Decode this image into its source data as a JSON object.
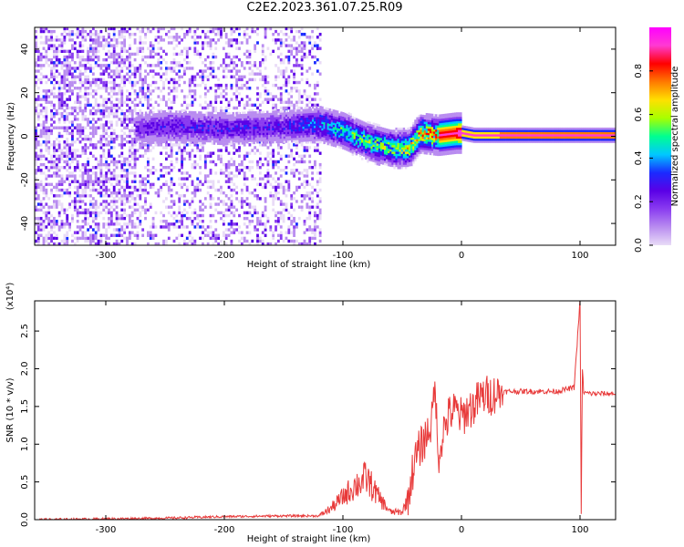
{
  "figure_title": "C2E2.2023.361.07.25.R09",
  "colors": {
    "snr_line": "#e83a3a",
    "spectrogram_palette": [
      "#ffffff",
      "#e9dcf7",
      "#b98cf0",
      "#8a3cf0",
      "#5a00e6",
      "#1a2bff",
      "#00c8ff",
      "#00ff90",
      "#a8ff00",
      "#ffe000",
      "#ff7a00",
      "#ff0000",
      "#ff3ad2",
      "#ff00ff"
    ]
  },
  "chart_data": [
    {
      "type": "heatmap",
      "xlabel": "Height of straight line (km)",
      "ylabel": "Frequency (Hz)",
      "xlim": [
        -360,
        130
      ],
      "ylim": [
        -50,
        50
      ],
      "xticks": [
        -300,
        -200,
        -100,
        0,
        100
      ],
      "yticks": [
        -40,
        -20,
        0,
        20,
        40
      ],
      "xtick_labels": [
        "-300",
        "-200",
        "-100",
        "0",
        "100"
      ],
      "ytick_labels": [
        "-40",
        "-20",
        "0",
        "20",
        "40"
      ],
      "colorbar": {
        "label": "Normalized spectral amplitude",
        "range": [
          0,
          1
        ],
        "ticks": [
          0.0,
          0.2,
          0.4,
          0.6,
          0.8
        ],
        "tick_labels": [
          "0.0",
          "0.2",
          "0.4",
          "0.6",
          "0.8"
        ]
      },
      "ridge": {
        "x": [
          -275,
          -250,
          -200,
          -150,
          -120,
          -100,
          -80,
          -60,
          -45,
          -35,
          -20,
          -5,
          0,
          10,
          20,
          40,
          100,
          130
        ],
        "frequency": [
          3,
          4,
          3,
          4,
          5,
          2,
          -3,
          -6,
          -6,
          1,
          0,
          1,
          1,
          0,
          0,
          0,
          0,
          0
        ],
        "amplitude": [
          0.25,
          0.3,
          0.3,
          0.32,
          0.45,
          0.55,
          0.6,
          0.65,
          0.7,
          0.8,
          0.88,
          0.9,
          0.92,
          0.93,
          0.93,
          0.95,
          0.95,
          0.95
        ]
      },
      "noise_extent_x": [
        -360,
        -120
      ]
    },
    {
      "type": "line",
      "xlabel": "Height of straight line (km)",
      "ylabel": "SNR (10 * v/v)",
      "y_multiplier_label": "(x10⁴)",
      "xlim": [
        -360,
        130
      ],
      "ylim": [
        0,
        2.9
      ],
      "xticks": [
        -300,
        -200,
        -100,
        0,
        100
      ],
      "yticks": [
        0.0,
        0.5,
        1.0,
        1.5,
        2.0,
        2.5
      ],
      "xtick_labels": [
        "-300",
        "-200",
        "-100",
        "0",
        "100"
      ],
      "ytick_labels": [
        "0.0",
        "0.5",
        "1.0",
        "1.5",
        "2.0",
        "2.5"
      ],
      "series": [
        {
          "x": [
            -360,
            -300,
            -250,
            -200,
            -150,
            -120,
            -110,
            -100,
            -90,
            -80,
            -70,
            -60,
            -50,
            -45,
            -40,
            -35,
            -30,
            -25,
            -22,
            -20,
            -15,
            -10,
            -5,
            0,
            5,
            10,
            15,
            20,
            25,
            30,
            40,
            60,
            80,
            95,
            100,
            101,
            102,
            103,
            104,
            110,
            120,
            130
          ],
          "values": [
            0.0,
            0.01,
            0.02,
            0.04,
            0.05,
            0.05,
            0.15,
            0.3,
            0.45,
            0.55,
            0.3,
            0.1,
            0.1,
            0.3,
            0.75,
            0.95,
            1.1,
            1.3,
            1.85,
            0.8,
            1.2,
            1.4,
            1.45,
            1.35,
            1.45,
            1.5,
            1.6,
            1.65,
            1.65,
            1.68,
            1.7,
            1.7,
            1.7,
            1.75,
            2.9,
            0.05,
            2.0,
            1.7,
            1.68,
            1.67,
            1.67,
            1.67
          ]
        }
      ]
    }
  ]
}
